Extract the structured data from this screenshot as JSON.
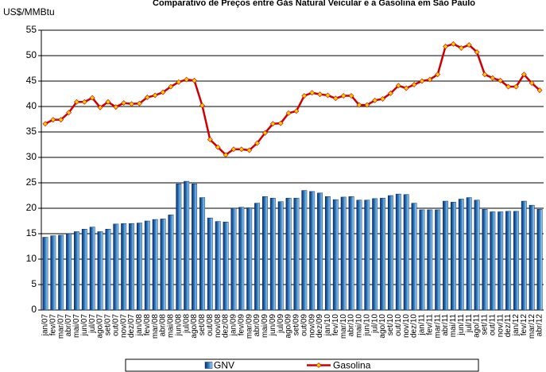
{
  "chart_data": {
    "type": "bar-line",
    "title": "Comparativo de Preços entre Gás Natural Veicular e a Gasolina em São Paulo",
    "y_label": "US$/MMBtu",
    "categories": [
      "jan/07",
      "fev/07",
      "mar/07",
      "abr/07",
      "mai/07",
      "jun/07",
      "jul/07",
      "ago/07",
      "set/07",
      "out/07",
      "nov/07",
      "dez/07",
      "jan/08",
      "fev/08",
      "mar/08",
      "abr/08",
      "mai/08",
      "jun/08",
      "jul/08",
      "ago/08",
      "set/08",
      "out/08",
      "nov/08",
      "dez/08",
      "jan/09",
      "fev/09",
      "mar/09",
      "abr/09",
      "mai/09",
      "jun/09",
      "jul/09",
      "ago/09",
      "set/09",
      "out/09",
      "nov/09",
      "dez/09",
      "jan/10",
      "fev/10",
      "mar/10",
      "abr/10",
      "mai/10",
      "jun/10",
      "jul/10",
      "ago/10",
      "set/10",
      "out/10",
      "nov/10",
      "dez/10",
      "jan/11",
      "fev/11",
      "mar/11",
      "abr/11",
      "mai/11",
      "jun/11",
      "jul/11",
      "ago/11",
      "set/11",
      "out/11",
      "nov/11",
      "dez/11",
      "jan/12",
      "fev/12",
      "mar/12",
      "abr/12"
    ],
    "series": [
      {
        "name": "GNV",
        "type": "bar",
        "color": "#2f7fc1",
        "values": [
          14.3,
          14.6,
          14.7,
          15.0,
          15.4,
          15.9,
          16.3,
          15.4,
          15.9,
          16.9,
          17.0,
          17.0,
          17.1,
          17.5,
          17.8,
          17.9,
          18.7,
          24.8,
          25.3,
          24.8,
          22.1,
          18.1,
          17.4,
          17.3,
          20.0,
          20.2,
          20.1,
          21.0,
          22.3,
          22.0,
          21.3,
          22.0,
          22.0,
          23.5,
          23.3,
          23.0,
          22.3,
          21.7,
          22.2,
          22.3,
          21.6,
          21.6,
          21.9,
          22.0,
          22.5,
          22.8,
          22.7,
          21.0,
          19.7,
          19.7,
          19.7,
          21.4,
          21.2,
          21.8,
          22.1,
          21.6,
          19.8,
          19.3,
          19.3,
          19.4,
          19.4,
          21.4,
          20.6,
          19.8
        ]
      },
      {
        "name": "Gasolina",
        "type": "line",
        "color": "#cc0000",
        "marker_color": "#ffcc00",
        "values": [
          36.6,
          37.4,
          37.4,
          38.8,
          40.9,
          40.9,
          41.7,
          39.8,
          40.9,
          39.9,
          40.7,
          40.5,
          40.6,
          41.8,
          42.2,
          42.8,
          43.9,
          44.8,
          45.3,
          45.1,
          40.2,
          33.5,
          32.0,
          30.5,
          31.6,
          31.6,
          31.4,
          32.8,
          34.8,
          36.6,
          36.7,
          38.7,
          39.1,
          42.1,
          42.7,
          42.4,
          42.2,
          41.6,
          42.1,
          42.1,
          40.3,
          40.3,
          41.2,
          41.5,
          42.6,
          44.1,
          43.6,
          44.3,
          45.0,
          45.3,
          46.3,
          51.8,
          52.3,
          51.5,
          52.1,
          50.7,
          46.3,
          45.6,
          45.1,
          43.9,
          43.9,
          46.3,
          44.6,
          43.2
        ]
      }
    ],
    "ylim": [
      0,
      55
    ],
    "yticks": [
      0,
      5,
      10,
      15,
      20,
      25,
      30,
      35,
      40,
      45,
      50,
      55
    ],
    "grid": true,
    "legend": "bottom"
  }
}
